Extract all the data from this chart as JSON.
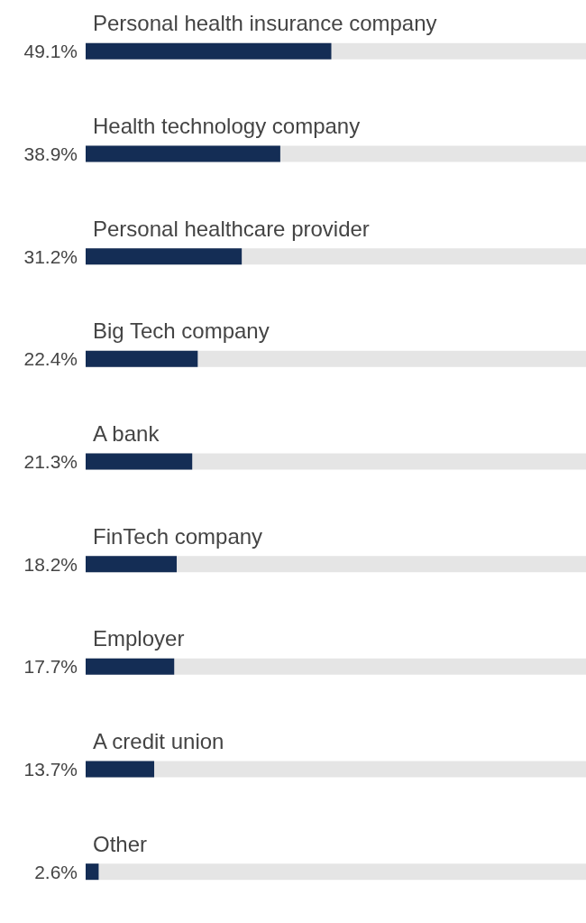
{
  "chart_data": {
    "type": "bar",
    "orientation": "horizontal",
    "categories": [
      "Personal health insurance company",
      "Health technology company",
      "Personal healthcare provider",
      "Big Tech company",
      "A bank",
      "FinTech company",
      "Employer",
      "A credit union",
      "Other"
    ],
    "values": [
      49.1,
      38.9,
      31.2,
      22.4,
      21.3,
      18.2,
      17.7,
      13.7,
      2.6
    ],
    "value_labels": [
      "49.1%",
      "38.9%",
      "31.2%",
      "22.4%",
      "21.3%",
      "18.2%",
      "17.7%",
      "13.7%",
      "2.6%"
    ],
    "color": "#142d55",
    "xlim": [
      0,
      100
    ],
    "tick_labels": "y"
  }
}
